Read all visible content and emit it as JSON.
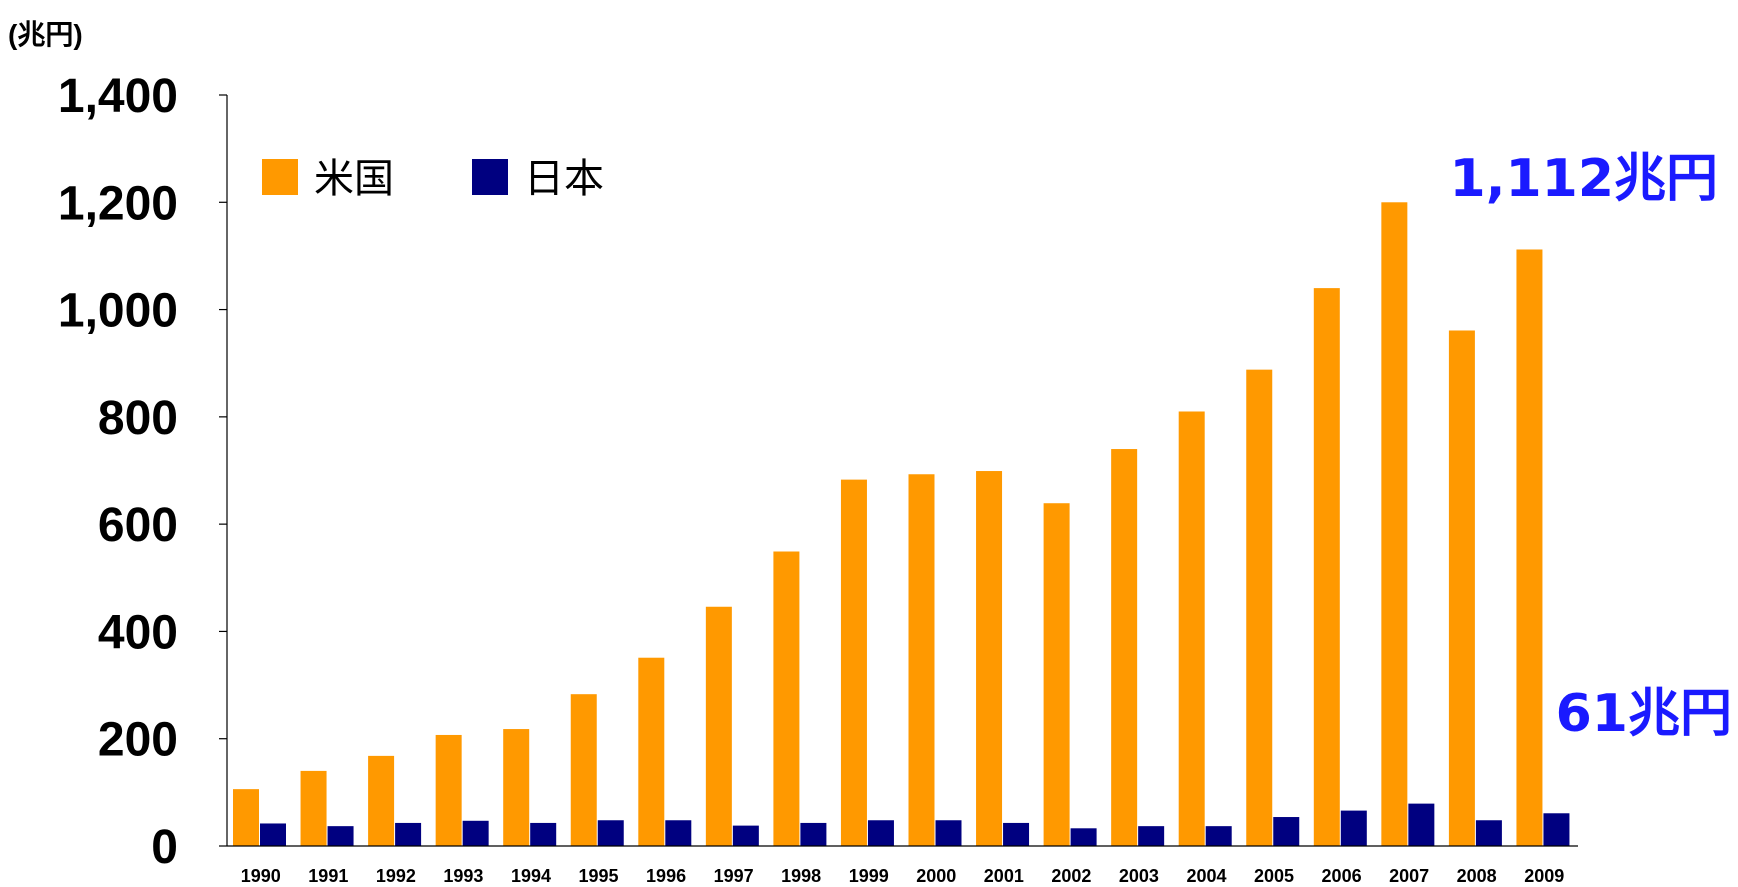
{
  "chart_data": {
    "type": "bar",
    "unit_label": "(兆円)",
    "categories": [
      "1990",
      "1991",
      "1992",
      "1993",
      "1994",
      "1995",
      "1996",
      "1997",
      "1998",
      "1999",
      "2000",
      "2001",
      "2002",
      "2003",
      "2004",
      "2005",
      "2006",
      "2007",
      "2008",
      "2009"
    ],
    "series": [
      {
        "name": "米国",
        "color": "#FF9900",
        "values": [
          106,
          140,
          168,
          207,
          218,
          283,
          351,
          446,
          549,
          683,
          693,
          699,
          639,
          740,
          810,
          888,
          1040,
          1200,
          961,
          1112
        ]
      },
      {
        "name": "日本",
        "color": "#000080",
        "values": [
          42,
          37,
          43,
          47,
          43,
          48,
          48,
          38,
          43,
          48,
          48,
          43,
          33,
          37,
          37,
          54,
          66,
          79,
          48,
          61
        ]
      }
    ],
    "ylim": [
      0,
      1400
    ],
    "yticks": [
      "0",
      "200",
      "400",
      "600",
      "800",
      "1,000",
      "1,200",
      "1,400"
    ],
    "legend_position": "top-left",
    "grid": false,
    "annotations": [
      {
        "text": "1,112兆円",
        "target": "米国 2009"
      },
      {
        "text": "61兆円",
        "target": "日本 2009"
      }
    ]
  }
}
